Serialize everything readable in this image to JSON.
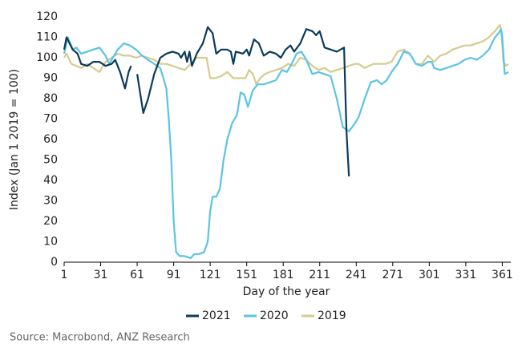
{
  "chart_data": {
    "type": "line",
    "ylabel": "Index (Jan 1 2019 = 100)",
    "xlabel": "Day of the year",
    "source": "Source: Macrobond, ANZ Research",
    "xlim": [
      1,
      366
    ],
    "xticks": [
      1,
      31,
      61,
      91,
      121,
      151,
      181,
      211,
      241,
      271,
      301,
      331,
      361
    ],
    "ylim": [
      0,
      120
    ],
    "yticks": [
      0,
      10,
      20,
      30,
      40,
      50,
      60,
      70,
      80,
      90,
      100,
      110,
      120
    ],
    "grid": false,
    "legend": "bottom",
    "series": [
      {
        "name": "2021",
        "color": "#0b3a5a",
        "x": [
          1,
          3,
          8,
          12,
          15,
          20,
          25,
          30,
          35,
          40,
          43,
          47,
          51,
          54,
          56,
          58,
          61,
          66,
          70,
          75,
          80,
          85,
          90,
          95,
          97,
          100,
          102,
          104,
          106,
          110,
          115,
          119,
          123,
          126,
          130,
          135,
          138,
          140,
          142,
          148,
          151,
          153,
          157,
          161,
          165,
          170,
          175,
          179,
          183,
          187,
          190,
          195,
          200,
          205,
          208,
          211,
          215,
          220,
          225,
          231,
          233,
          235
        ],
        "values": [
          104,
          110,
          104,
          102,
          97,
          96,
          98,
          98,
          96,
          97,
          99,
          93,
          85,
          93,
          96,
          null,
          92,
          73,
          80,
          92,
          100,
          102,
          103,
          102,
          100,
          103,
          98,
          103,
          96,
          102,
          107,
          115,
          112,
          102,
          104,
          104,
          103,
          97,
          103,
          102,
          104,
          101,
          109,
          107,
          101,
          103,
          102,
          100,
          104,
          106,
          103,
          107,
          114,
          113,
          111,
          113,
          105,
          104,
          103,
          105,
          64,
          42
        ]
      },
      {
        "name": "2020",
        "color": "#5bc4e2",
        "x": [
          1,
          4,
          8,
          11,
          15,
          20,
          25,
          30,
          35,
          38,
          45,
          50,
          55,
          60,
          65,
          70,
          75,
          80,
          85,
          87,
          89,
          91,
          93,
          96,
          100,
          105,
          108,
          112,
          116,
          119,
          121,
          123,
          126,
          129,
          132,
          135,
          139,
          143,
          146,
          149,
          152,
          156,
          160,
          165,
          170,
          175,
          180,
          184,
          188,
          192,
          196,
          200,
          205,
          210,
          215,
          220,
          225,
          230,
          235,
          240,
          243,
          248,
          253,
          258,
          262,
          266,
          270,
          275,
          280,
          285,
          290,
          295,
          300,
          303,
          305,
          310,
          315,
          320,
          325,
          330,
          335,
          340,
          345,
          350,
          355,
          358,
          360,
          361,
          363,
          366
        ],
        "values": [
          102,
          110,
          104,
          105,
          102,
          103,
          104,
          105,
          101,
          97,
          104,
          107,
          106,
          104,
          101,
          99,
          97,
          95,
          85,
          70,
          50,
          20,
          5,
          3,
          3,
          2,
          4,
          4,
          5,
          10,
          25,
          32,
          32,
          36,
          50,
          60,
          68,
          72,
          83,
          82,
          76,
          84,
          87,
          87,
          88,
          89,
          94,
          93,
          97,
          102,
          103,
          99,
          92,
          93,
          92,
          91,
          80,
          66,
          64,
          68,
          71,
          80,
          88,
          89,
          87,
          89,
          93,
          97,
          103,
          102,
          97,
          96,
          98,
          98,
          95,
          94,
          95,
          96,
          97,
          99,
          100,
          99,
          101,
          104,
          110,
          112,
          114,
          110,
          92,
          93
        ]
      },
      {
        "name": "2019",
        "color": "#d6cb8f",
        "x": [
          1,
          3,
          7,
          11,
          15,
          20,
          25,
          30,
          35,
          40,
          45,
          50,
          55,
          60,
          65,
          70,
          75,
          80,
          85,
          90,
          95,
          100,
          105,
          110,
          115,
          118,
          121,
          125,
          130,
          135,
          140,
          145,
          150,
          153,
          156,
          159,
          162,
          166,
          170,
          175,
          180,
          185,
          190,
          195,
          200,
          205,
          210,
          215,
          220,
          225,
          230,
          235,
          240,
          243,
          248,
          255,
          265,
          270,
          275,
          280,
          285,
          290,
          295,
          300,
          305,
          310,
          315,
          320,
          325,
          330,
          335,
          340,
          345,
          350,
          355,
          359,
          360,
          362,
          364,
          366
        ],
        "values": [
          100,
          102,
          97,
          96,
          95,
          97,
          95,
          93,
          98,
          100,
          102,
          101,
          101,
          100,
          101,
          100,
          99,
          97,
          97,
          96,
          95,
          94,
          97,
          100,
          100,
          100,
          90,
          90,
          91,
          93,
          90,
          90,
          90,
          94,
          92,
          87,
          90,
          92,
          93,
          94,
          95,
          97,
          96,
          100,
          99,
          96,
          94,
          95,
          93,
          94,
          95,
          96,
          97,
          97,
          95,
          97,
          97,
          98,
          103,
          104,
          102,
          97,
          97,
          101,
          98,
          101,
          102,
          104,
          105,
          106,
          106,
          107,
          108,
          110,
          113,
          116,
          114,
          98,
          96,
          97
        ]
      }
    ]
  }
}
